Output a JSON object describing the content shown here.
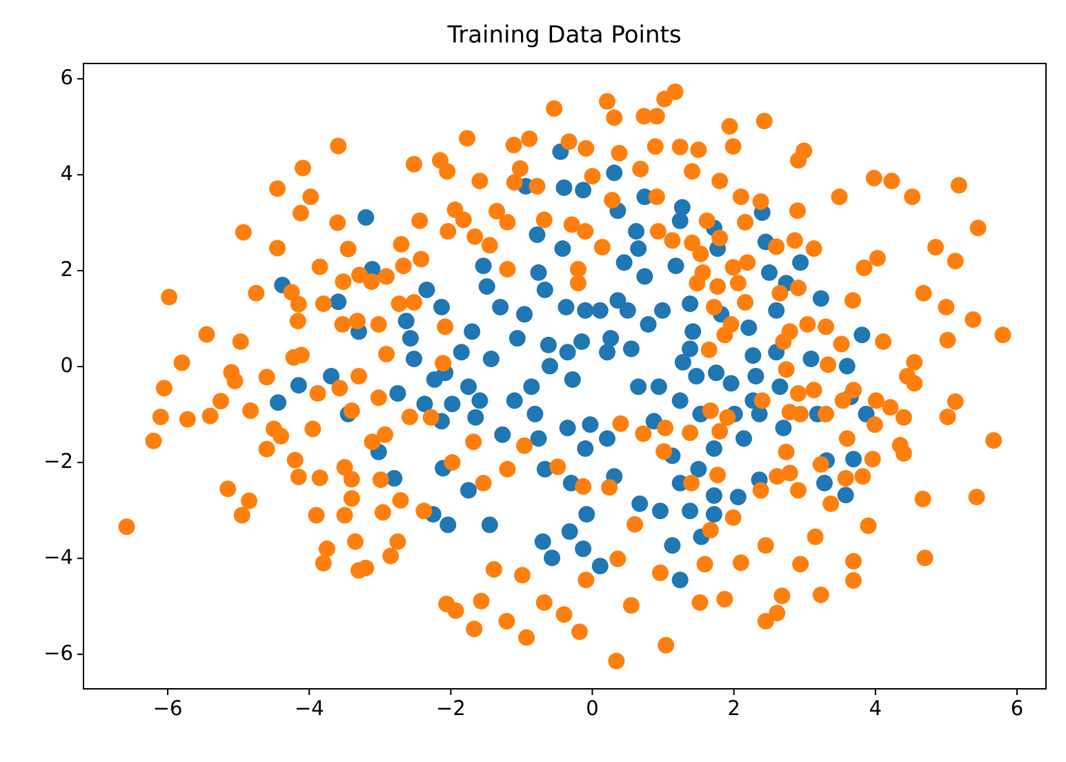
{
  "chart_data": {
    "type": "scatter",
    "title": "Training Data Points",
    "xlim": [
      -7.19,
      6.41
    ],
    "ylim": [
      -6.72,
      6.32
    ],
    "xticks": [
      {
        "value": -6,
        "label": "−6"
      },
      {
        "value": -4,
        "label": "−4"
      },
      {
        "value": -2,
        "label": "−2"
      },
      0,
      2,
      4,
      6
    ],
    "yticks": [
      {
        "value": -6,
        "label": "−6"
      },
      {
        "value": -4,
        "label": "−4"
      },
      {
        "value": -2,
        "label": "−2"
      },
      0,
      2,
      4,
      6
    ],
    "grid": false,
    "series": [
      {
        "color": "#1f77b4",
        "x": [
          -4.38,
          -4.15,
          -4.44,
          -3.2,
          -3.11,
          -3.59,
          -3.3,
          -3.69,
          -3.45,
          -3.02,
          -2.8,
          -2.75,
          -2.63,
          -2.57,
          -2.52,
          -2.37,
          -2.23,
          -2.13,
          -2.34,
          -2.13,
          -2.08,
          -1.98,
          -2.11,
          -2.25,
          -2.04,
          -1.75,
          -1.45,
          -1.65,
          -1.59,
          -1.75,
          -1.85,
          -1.7,
          -1.54,
          -1.49,
          -1.43,
          -1.3,
          -1.27,
          -1.1,
          -1.06,
          -0.96,
          -0.94,
          -0.78,
          -0.76,
          -0.67,
          -0.62,
          -0.6,
          -0.86,
          -0.81,
          -0.76,
          -0.67,
          -0.7,
          -0.57,
          -0.45,
          -0.4,
          -0.42,
          -0.37,
          -0.35,
          -0.28,
          -0.35,
          -0.3,
          -0.32,
          -0.13,
          -0.08,
          -0.1,
          -0.03,
          -0.15,
          -0.1,
          -0.13,
          0.11,
          0.21,
          0.31,
          0.21,
          0.26,
          0.36,
          0.31,
          0.36,
          0.45,
          0.5,
          0.55,
          0.65,
          0.62,
          0.65,
          0.74,
          0.74,
          0.79,
          0.94,
          0.87,
          0.67,
          0.96,
          1.13,
          1.24,
          1.24,
          1.13,
          1.24,
          1.28,
          1.18,
          1.24,
          1.27,
          1.38,
          1.42,
          1.47,
          1.53,
          1.5,
          1.38,
          1.54,
          1.72,
          1.77,
          1.82,
          1.75,
          1.72,
          1.72,
          1.72,
          1.96,
          2.01,
          2.06,
          2.14,
          2.21,
          2.27,
          2.31,
          2.36,
          2.36,
          2.4,
          2.45,
          2.5,
          2.6,
          2.6,
          2.65,
          2.7,
          2.74,
          2.94,
          3.09,
          3.18,
          3.23,
          3.31,
          3.28,
          3.6,
          3.65,
          3.69,
          3.58,
          3.81,
          3.87,
          2.27,
          1.38,
          0.99,
          0.11
        ],
        "y": [
          1.7,
          -0.39,
          -0.75,
          3.11,
          2.03,
          1.35,
          0.73,
          -0.2,
          -0.99,
          -1.78,
          -2.33,
          -0.56,
          0.95,
          0.59,
          0.16,
          -0.78,
          -0.27,
          -1.14,
          1.6,
          1.24,
          -0.13,
          -0.78,
          -2.12,
          -3.08,
          -3.3,
          -2.58,
          -3.3,
          -1.06,
          -0.71,
          -0.42,
          0.3,
          0.73,
          2.1,
          1.67,
          0.16,
          1.24,
          -1.42,
          -0.71,
          0.59,
          1.09,
          3.76,
          2.75,
          1.96,
          1.6,
          0.45,
          0.01,
          -0.42,
          -0.99,
          -1.5,
          -2.14,
          -3.65,
          -3.99,
          4.48,
          3.73,
          2.46,
          1.24,
          0.3,
          -0.27,
          -1.28,
          -2.43,
          -3.44,
          -3.8,
          -3.08,
          -1.71,
          -1.21,
          0.52,
          1.17,
          3.68,
          -4.16,
          -1.5,
          -2.29,
          0.3,
          0.59,
          1.38,
          4.04,
          3.25,
          2.17,
          1.17,
          0.37,
          -0.42,
          2.82,
          2.46,
          3.54,
          1.88,
          0.88,
          -0.42,
          -1.14,
          -2.86,
          -3.01,
          -3.73,
          -4.45,
          -2.43,
          -1.86,
          -0.71,
          0.09,
          2.1,
          3.04,
          3.32,
          1.31,
          0.73,
          -0.2,
          -0.99,
          -2.14,
          -3.01,
          -3.55,
          2.89,
          2.46,
          1.09,
          -0.13,
          -1.71,
          -2.69,
          -3.08,
          -0.35,
          -0.99,
          -2.72,
          -1.5,
          0.81,
          0.23,
          -0.2,
          -0.99,
          -2.36,
          3.21,
          2.6,
          1.96,
          1.17,
          0.3,
          -0.42,
          -1.28,
          1.74,
          2.17,
          0.16,
          -0.99,
          1.42,
          -1.96,
          -2.43,
          0.01,
          -0.63,
          -1.93,
          -2.68,
          0.66,
          -0.99,
          -0.71,
          0.37,
          1.17,
          1.17
        ]
      },
      {
        "color": "#ff7f0e",
        "x": [
          -0.54,
          0.21,
          0.31,
          1.17,
          1.02,
          0.73,
          0.91,
          1.94,
          2.43,
          -1.77,
          -0.89,
          -1.11,
          -0.33,
          -0.09,
          0.38,
          0.89,
          1.24,
          1.5,
          1.99,
          2.99,
          2.91,
          -3.59,
          -2.52,
          -2.15,
          -2.05,
          -4.09,
          -4.45,
          -3.98,
          -1.59,
          -1.02,
          -0.78,
          0,
          0.68,
          1.8,
          1.41,
          2.1,
          2.38,
          2.9,
          3.49,
          3.98,
          4.23,
          4.52,
          5.18,
          5.45,
          4.85,
          5.13,
          4.03,
          3.84,
          3.68,
          4.68,
          5.0,
          5.38,
          5.8,
          5.02,
          4.11,
          4.55,
          5.67,
          5.13,
          5.02,
          5.43,
          4.67,
          4.7,
          3.69,
          3.69,
          3.9,
          3.58,
          2.94,
          2.68,
          2.61,
          2.45,
          3.23,
          1.87,
          1.52,
          1.04,
          0.34,
          0.55,
          -0.18,
          -0.93,
          -1.21,
          -1.67,
          -1.93,
          -2.06,
          -1.57,
          -1.39,
          -0.99,
          -0.68,
          -0.4,
          -0.09,
          0.36,
          0.6,
          0.96,
          1.59,
          2.1,
          2.45,
          3.15,
          3.37,
          2.91,
          3.23,
          2.38,
          1.99,
          1.67,
          1.4,
          1.77,
          1.38,
          1.03,
          1.01,
          0.72,
          0.4,
          0.24,
          -0.13,
          -0.49,
          -0.96,
          -1.2,
          -1.54,
          -1.68,
          -1.98,
          -2.38,
          -2.71,
          -2.96,
          -2.99,
          -3.11,
          -2.93,
          -2.58,
          -2.28,
          -2.11,
          -2.08,
          -3.02,
          -3.4,
          -3.3,
          -3.57,
          -3.88,
          -4.22,
          -4.11,
          -2.91,
          -3.02,
          -3.32,
          -3.53,
          -3.8,
          -4.16,
          -2.73,
          -2.52,
          -3.52,
          -3.29,
          -3.12,
          -2.91,
          -2.67,
          -2.42,
          -2.7,
          -2.44,
          -2.04,
          -1.94,
          -1.82,
          -1.66,
          -1.45,
          -1.2,
          -1.35,
          -1.2,
          -1.1,
          -0.68,
          -0.29,
          -0.1,
          0.14,
          -0.2,
          -0.2,
          0.28,
          0.91,
          0.93,
          1.13,
          1.41,
          1.53,
          1.56,
          1.48,
          1.77,
          1.72,
          1.99,
          2.19,
          2.06,
          1.8,
          1.62,
          2.16,
          2.6,
          2.86,
          3.13,
          2.91,
          2.65,
          2.16,
          1.96,
          1.87,
          1.65,
          2.7,
          2.79,
          3.04,
          3.3,
          3.52,
          3.33,
          2.74,
          2.91,
          3.13,
          2.94,
          2.79,
          3.3,
          3.54,
          3.69,
          4.01,
          4.21,
          4.4,
          4.45,
          4.55,
          3.99,
          3.96,
          3.82,
          3.6,
          4.35,
          4.4,
          2.74,
          2.79,
          2.61,
          2.4,
          1.91,
          1.8,
          1.67,
          -6.58,
          -6.2,
          -6.1,
          -6.05,
          -5.98,
          -5.8,
          -5.72,
          -5.45,
          -5.4,
          -5.25,
          -5.15,
          -5.1,
          -5.05,
          -4.97,
          -4.95,
          -4.93,
          -4.85,
          -4.83,
          -4.75,
          -4.6,
          -4.6,
          -4.5,
          -4.4,
          -4.45,
          -4.25,
          -4.15,
          -4.2,
          -4.15,
          -4.12,
          -3.95,
          -3.9,
          -3.85,
          -3.85,
          -3.8,
          -3.75,
          -3.6,
          -3.5,
          -3.5,
          -3.45,
          -3.4,
          -3.4,
          -3.35,
          -3.3,
          -3.2,
          -2.85,
          -2.75
        ],
        "y": [
          5.38,
          5.53,
          5.19,
          5.73,
          5.58,
          5.22,
          5.22,
          5.01,
          5.12,
          4.76,
          4.75,
          4.62,
          4.69,
          4.55,
          4.45,
          4.59,
          4.58,
          4.52,
          4.59,
          4.5,
          4.3,
          4.6,
          4.22,
          4.3,
          4.07,
          4.14,
          3.71,
          3.54,
          3.87,
          4.13,
          3.76,
          3.97,
          4.12,
          3.87,
          4.07,
          3.54,
          3.44,
          3.25,
          3.54,
          3.93,
          3.87,
          3.54,
          3.78,
          2.89,
          2.49,
          2.2,
          2.26,
          2.06,
          1.38,
          1.53,
          1.24,
          0.98,
          0.66,
          0.55,
          0.52,
          0.09,
          -1.54,
          -0.73,
          -1.05,
          -2.72,
          -2.76,
          -3.99,
          -4.06,
          -4.46,
          -3.32,
          -2.33,
          -4.12,
          -4.78,
          -5.14,
          -5.31,
          -4.76,
          -4.85,
          -4.92,
          -5.81,
          -6.14,
          -4.98,
          -5.53,
          -5.65,
          -5.31,
          -5.47,
          -5.09,
          -4.95,
          -4.89,
          -4.23,
          -4.35,
          -4.92,
          -5.17,
          -4.45,
          -4.01,
          -3.29,
          -4.3,
          -4.12,
          -4.09,
          -3.73,
          -3.55,
          -2.86,
          -2.58,
          -2.04,
          -2.58,
          -3.15,
          -3.41,
          -2.43,
          -2.26,
          -1.38,
          -1.28,
          -1.77,
          -1.4,
          -1.19,
          -2.52,
          -2.5,
          -2.09,
          -1.65,
          -2.14,
          -2.43,
          -1.57,
          -2.0,
          -3.01,
          -2.79,
          -3.04,
          -2.36,
          -1.57,
          -1.42,
          -1.05,
          -1.06,
          0.07,
          0.83,
          -0.65,
          -0.92,
          -0.2,
          -0.45,
          -0.56,
          0.19,
          0.24,
          0.26,
          0.88,
          0.95,
          0.88,
          1.31,
          0.95,
          1.31,
          1.34,
          1.77,
          1.91,
          1.77,
          1.88,
          2.1,
          2.24,
          2.55,
          3.04,
          2.82,
          3.27,
          3.06,
          2.71,
          2.53,
          2.03,
          3.24,
          3.01,
          3.84,
          3.06,
          2.96,
          2.82,
          2.49,
          2.03,
          1.74,
          3.47,
          3.54,
          2.82,
          2.63,
          2.58,
          2.35,
          1.96,
          1.74,
          1.67,
          1.24,
          2.07,
          2.17,
          1.74,
          2.68,
          3.04,
          3.01,
          2.5,
          2.63,
          2.46,
          1.64,
          1.53,
          1.34,
          0.88,
          0.66,
          0.35,
          0.52,
          0.73,
          0.88,
          0.83,
          0.47,
          0.04,
          -0.06,
          -0.56,
          -0.49,
          -0.99,
          -0.95,
          -0.99,
          -0.71,
          -0.49,
          -0.71,
          -0.85,
          -1.06,
          -0.2,
          -0.35,
          -1.21,
          -1.93,
          -2.29,
          -1.5,
          -1.64,
          -1.81,
          -1.78,
          -2.22,
          -2.29,
          -0.71,
          -1.06,
          -1.35,
          -0.92,
          -3.34,
          -1.55,
          -1.05,
          -0.45,
          1.45,
          0.08,
          -1.1,
          0.67,
          -1.03,
          -0.72,
          -2.55,
          -0.12,
          -0.3,
          0.52,
          -3.1,
          2.8,
          -2.8,
          -0.92,
          1.53,
          -0.22,
          -1.72,
          -1.3,
          -1.45,
          2.47,
          1.55,
          1.3,
          -1.95,
          -2.3,
          3.2,
          -1.3,
          -3.1,
          2.08,
          -2.32,
          -4.1,
          -3.8,
          3,
          -2.1,
          -3.1,
          2.45,
          -2.35,
          -2.75,
          -3.65,
          -4.25,
          -4.2,
          -3.95,
          -3.65
        ]
      }
    ]
  }
}
